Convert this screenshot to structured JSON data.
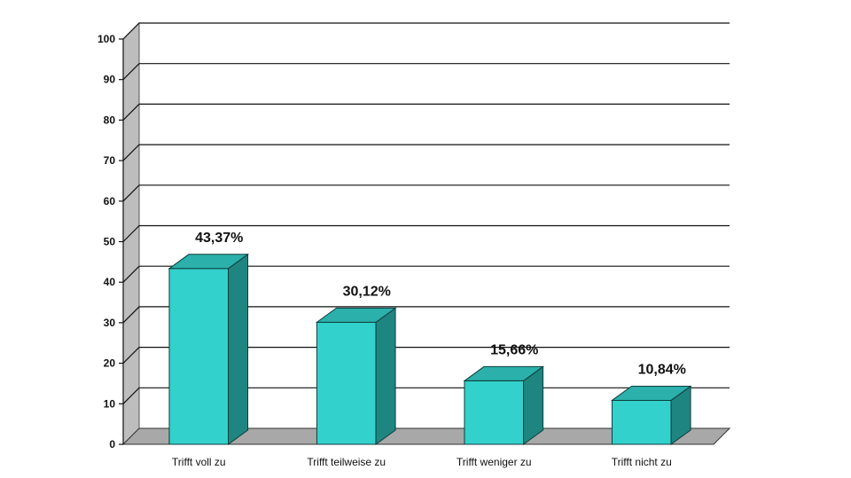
{
  "chart_data": {
    "type": "bar",
    "categories": [
      "Trifft voll zu",
      "Trifft teilweise zu",
      "Trifft weniger zu",
      "Trifft nicht zu"
    ],
    "values": [
      43.37,
      30.12,
      15.66,
      10.84
    ],
    "data_labels": [
      "43,37%",
      "30,12%",
      "15,66%",
      "10,84%"
    ],
    "title": "",
    "xlabel": "",
    "ylabel": "",
    "ylim": [
      0,
      100
    ],
    "yticks": [
      "0",
      "10",
      "20",
      "30",
      "40",
      "50",
      "60",
      "70",
      "80",
      "90",
      "100"
    ],
    "grid": true,
    "legend": "none",
    "style": "3d",
    "colors": {
      "bar_front": "#33d1cc",
      "bar_top": "#2bb0ab",
      "bar_side": "#1f8581",
      "bar_stroke": "#0e3e3c",
      "floor": "#a8a8a8",
      "back_wall": "#ffffff",
      "left_wall": "#bdbdbd",
      "gridline": "#111111"
    }
  }
}
